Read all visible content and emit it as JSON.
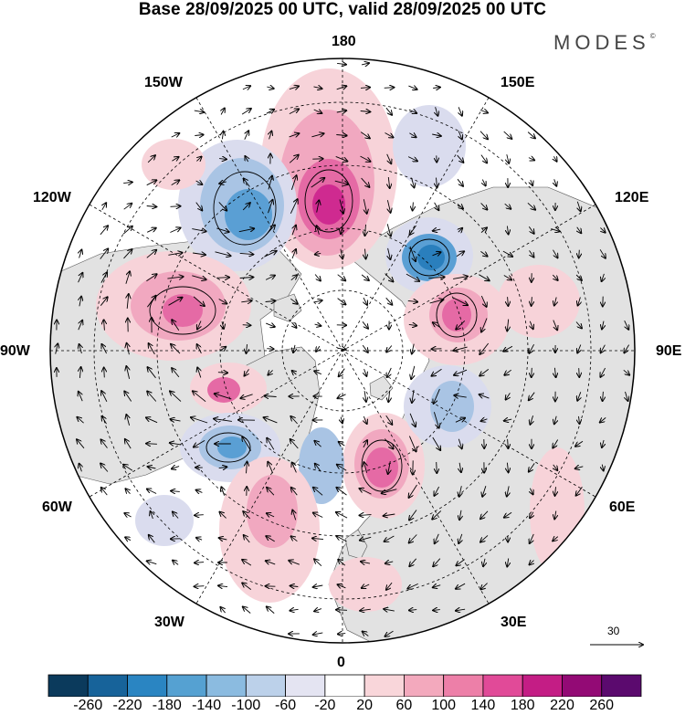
{
  "title": "Base 28/09/2025 00 UTC, valid 28/09/2025 00 UTC",
  "brand": {
    "name": "MODES",
    "mark": "©"
  },
  "longitude_labels": {
    "n180": "180",
    "w150": "150W",
    "e150": "150E",
    "w120": "120W",
    "e120": "120E",
    "w90": "90W",
    "e90": "90E",
    "w60": "60W",
    "e60": "60E",
    "w30": "30W",
    "e30": "30E",
    "s0": "0"
  },
  "reference_vector": {
    "value": "30"
  },
  "colorbar": {
    "colors": [
      "#0b3a5c",
      "#17639a",
      "#2a85c2",
      "#55a1d2",
      "#8bbbe0",
      "#bcd1ea",
      "#e4e4f2",
      "#ffffff",
      "#f9d6da",
      "#f3a9bd",
      "#ed7fa8",
      "#e14a98",
      "#c41d85",
      "#930a75",
      "#5b0a6e"
    ],
    "labels": [
      "-260",
      "-220",
      "-180",
      "-140",
      "-100",
      "-60",
      "-20",
      "20",
      "60",
      "100",
      "140",
      "180",
      "220",
      "260"
    ]
  },
  "map_colors": {
    "land": "#e2e2e2",
    "neg_light": "#dadcee",
    "neg_mid": "#a9c4e4",
    "neg_strong": "#5a9fd4",
    "neg_core": "#2a7fbd",
    "pos_light": "#f7d3d9",
    "pos_mid": "#f1a8c0",
    "pos_strong": "#e56aa5",
    "pos_core": "#cf2a90"
  }
}
